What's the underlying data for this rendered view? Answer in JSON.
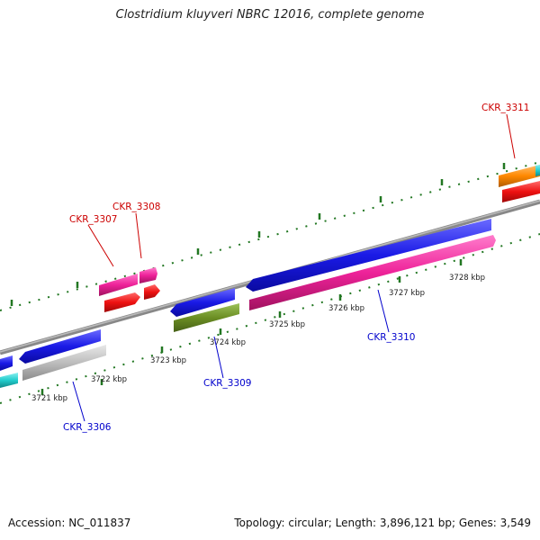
{
  "title": "Clostridium kluyveri NBRC 12016, complete genome",
  "footer": {
    "accession": "Accession: NC_011837",
    "stats": "Topology: circular; Length: 3,896,121 bp; Genes: 3,549"
  },
  "axis_labels": [
    "3721 kbp",
    "3722 kbp",
    "3723 kbp",
    "3724 kbp",
    "3725 kbp",
    "3726 kbp",
    "3727 kbp",
    "3728 kbp"
  ],
  "genes": [
    {
      "name": "CKR_3306",
      "strand": "minus",
      "label_color": "#0000cc"
    },
    {
      "name": "CKR_3307",
      "strand": "plus",
      "label_color": "#cc0000"
    },
    {
      "name": "CKR_3308",
      "strand": "plus",
      "label_color": "#cc0000"
    },
    {
      "name": "CKR_3309",
      "strand": "minus",
      "label_color": "#0000cc"
    },
    {
      "name": "CKR_3310",
      "strand": "minus",
      "label_color": "#0000cc"
    },
    {
      "name": "CKR_3311",
      "strand": "plus",
      "label_color": "#cc0000"
    }
  ],
  "colors": {
    "backbone": "#888888",
    "tick": "#227722",
    "blue": "#1a1ae6",
    "grey": "#bdbdbd",
    "cyan": "#22cccc",
    "magenta": "#ee2299",
    "red": "#ee1111",
    "olive": "#6b8e23",
    "orange": "#ff8800",
    "minus_label": "#0000cc",
    "plus_label": "#cc0000"
  }
}
